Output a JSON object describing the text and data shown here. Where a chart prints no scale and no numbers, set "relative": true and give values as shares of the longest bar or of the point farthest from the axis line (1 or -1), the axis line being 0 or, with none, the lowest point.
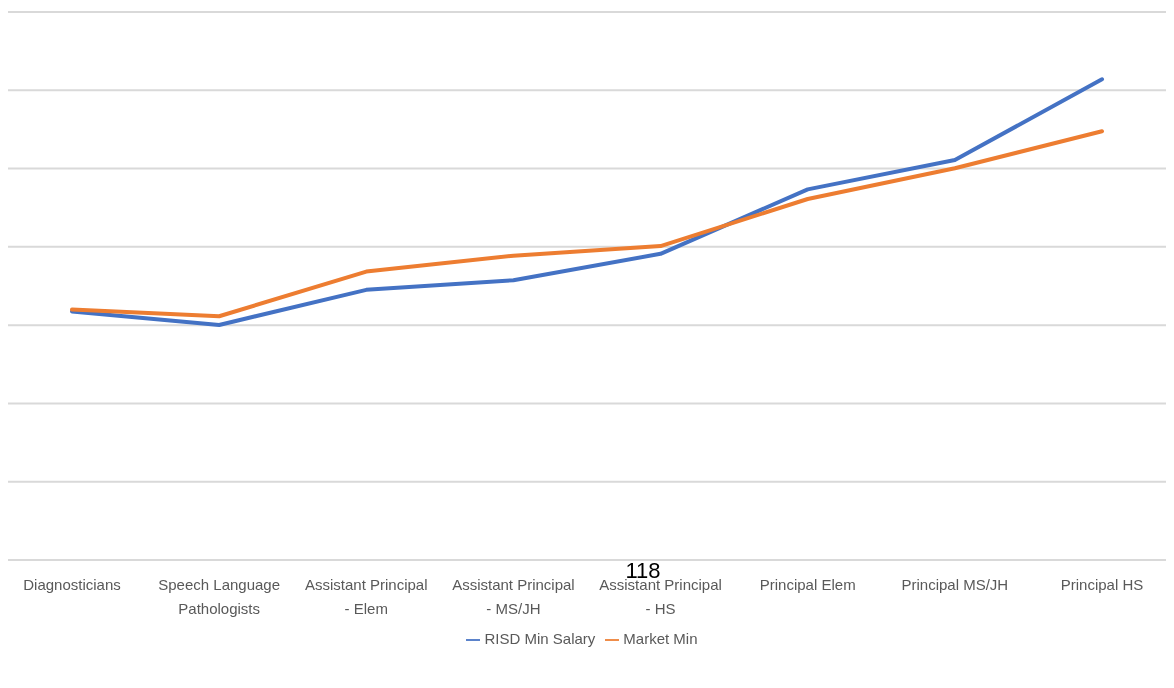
{
  "chart_data": {
    "type": "line",
    "relative": true,
    "categories": [
      "Diagnosticians",
      "Speech Language Pathologists",
      "Assistant Principal - Elem",
      "Assistant Principal - MS/JH",
      "Assistant Principal - HS",
      "Principal Elem",
      "Principal MS/JH",
      "Principal HS"
    ],
    "series": [
      {
        "name": "RISD Min Salary",
        "color": "#4472c4",
        "values": [
          0.517,
          0.489,
          0.562,
          0.582,
          0.637,
          0.771,
          0.832,
          1
        ]
      },
      {
        "name": "Market Min",
        "color": "#ed7d31",
        "values": [
          0.521,
          0.507,
          0.6,
          0.633,
          0.653,
          0.751,
          0.815,
          0.892
        ]
      }
    ],
    "grid": "y",
    "legend": "bottom",
    "marker": "none",
    "line_style": "solid",
    "annotations": [
      "118"
    ]
  }
}
